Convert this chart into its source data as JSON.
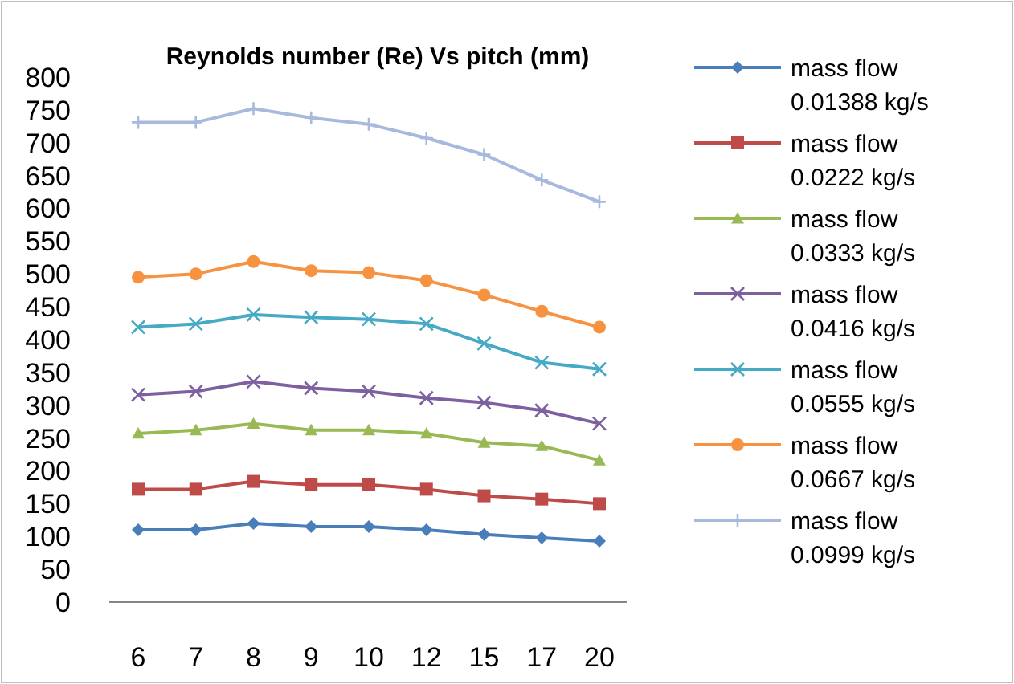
{
  "chart_data": {
    "type": "line",
    "title": "Reynolds number (Re) Vs pitch (mm)",
    "categories": [
      "6",
      "7",
      "8",
      "9",
      "10",
      "12",
      "15",
      "17",
      "20"
    ],
    "ylim": [
      0,
      800
    ],
    "yticks": [
      0,
      50,
      100,
      150,
      200,
      250,
      300,
      350,
      400,
      450,
      500,
      550,
      600,
      650,
      700,
      750,
      800
    ],
    "grid": false,
    "legend": "right",
    "line_style": "solid",
    "series": [
      {
        "name": "mass flow 0.01388 kg/s",
        "color": "#4a7ebb",
        "marker": "diamond",
        "values": [
          110,
          110,
          120,
          115,
          115,
          110,
          103,
          98,
          93
        ]
      },
      {
        "name": "mass flow 0.0222 kg/s",
        "color": "#be4b48",
        "marker": "square",
        "values": [
          172,
          172,
          184,
          179,
          179,
          172,
          162,
          157,
          150
        ]
      },
      {
        "name": "mass flow 0.0333 kg/s",
        "color": "#98b954",
        "marker": "triangle",
        "values": [
          257,
          262,
          272,
          262,
          262,
          257,
          243,
          238,
          216
        ]
      },
      {
        "name": "mass flow 0.0416 kg/s",
        "color": "#7d60a0",
        "marker": "cross",
        "values": [
          316,
          321,
          336,
          326,
          321,
          311,
          304,
          292,
          272
        ]
      },
      {
        "name": "mass flow 0.0555 kg/s",
        "color": "#46aac5",
        "marker": "cross",
        "values": [
          419,
          424,
          438,
          434,
          431,
          424,
          394,
          365,
          355
        ]
      },
      {
        "name": "mass flow 0.0667 kg/s",
        "color": "#f69240",
        "marker": "circle",
        "values": [
          495,
          500,
          519,
          505,
          502,
          490,
          468,
          443,
          419
        ]
      },
      {
        "name": "mass flow 0.0999 kg/s",
        "color": "#a7b9dc",
        "marker": "plus",
        "values": [
          731,
          731,
          752,
          738,
          728,
          707,
          682,
          643,
          610
        ]
      }
    ]
  }
}
